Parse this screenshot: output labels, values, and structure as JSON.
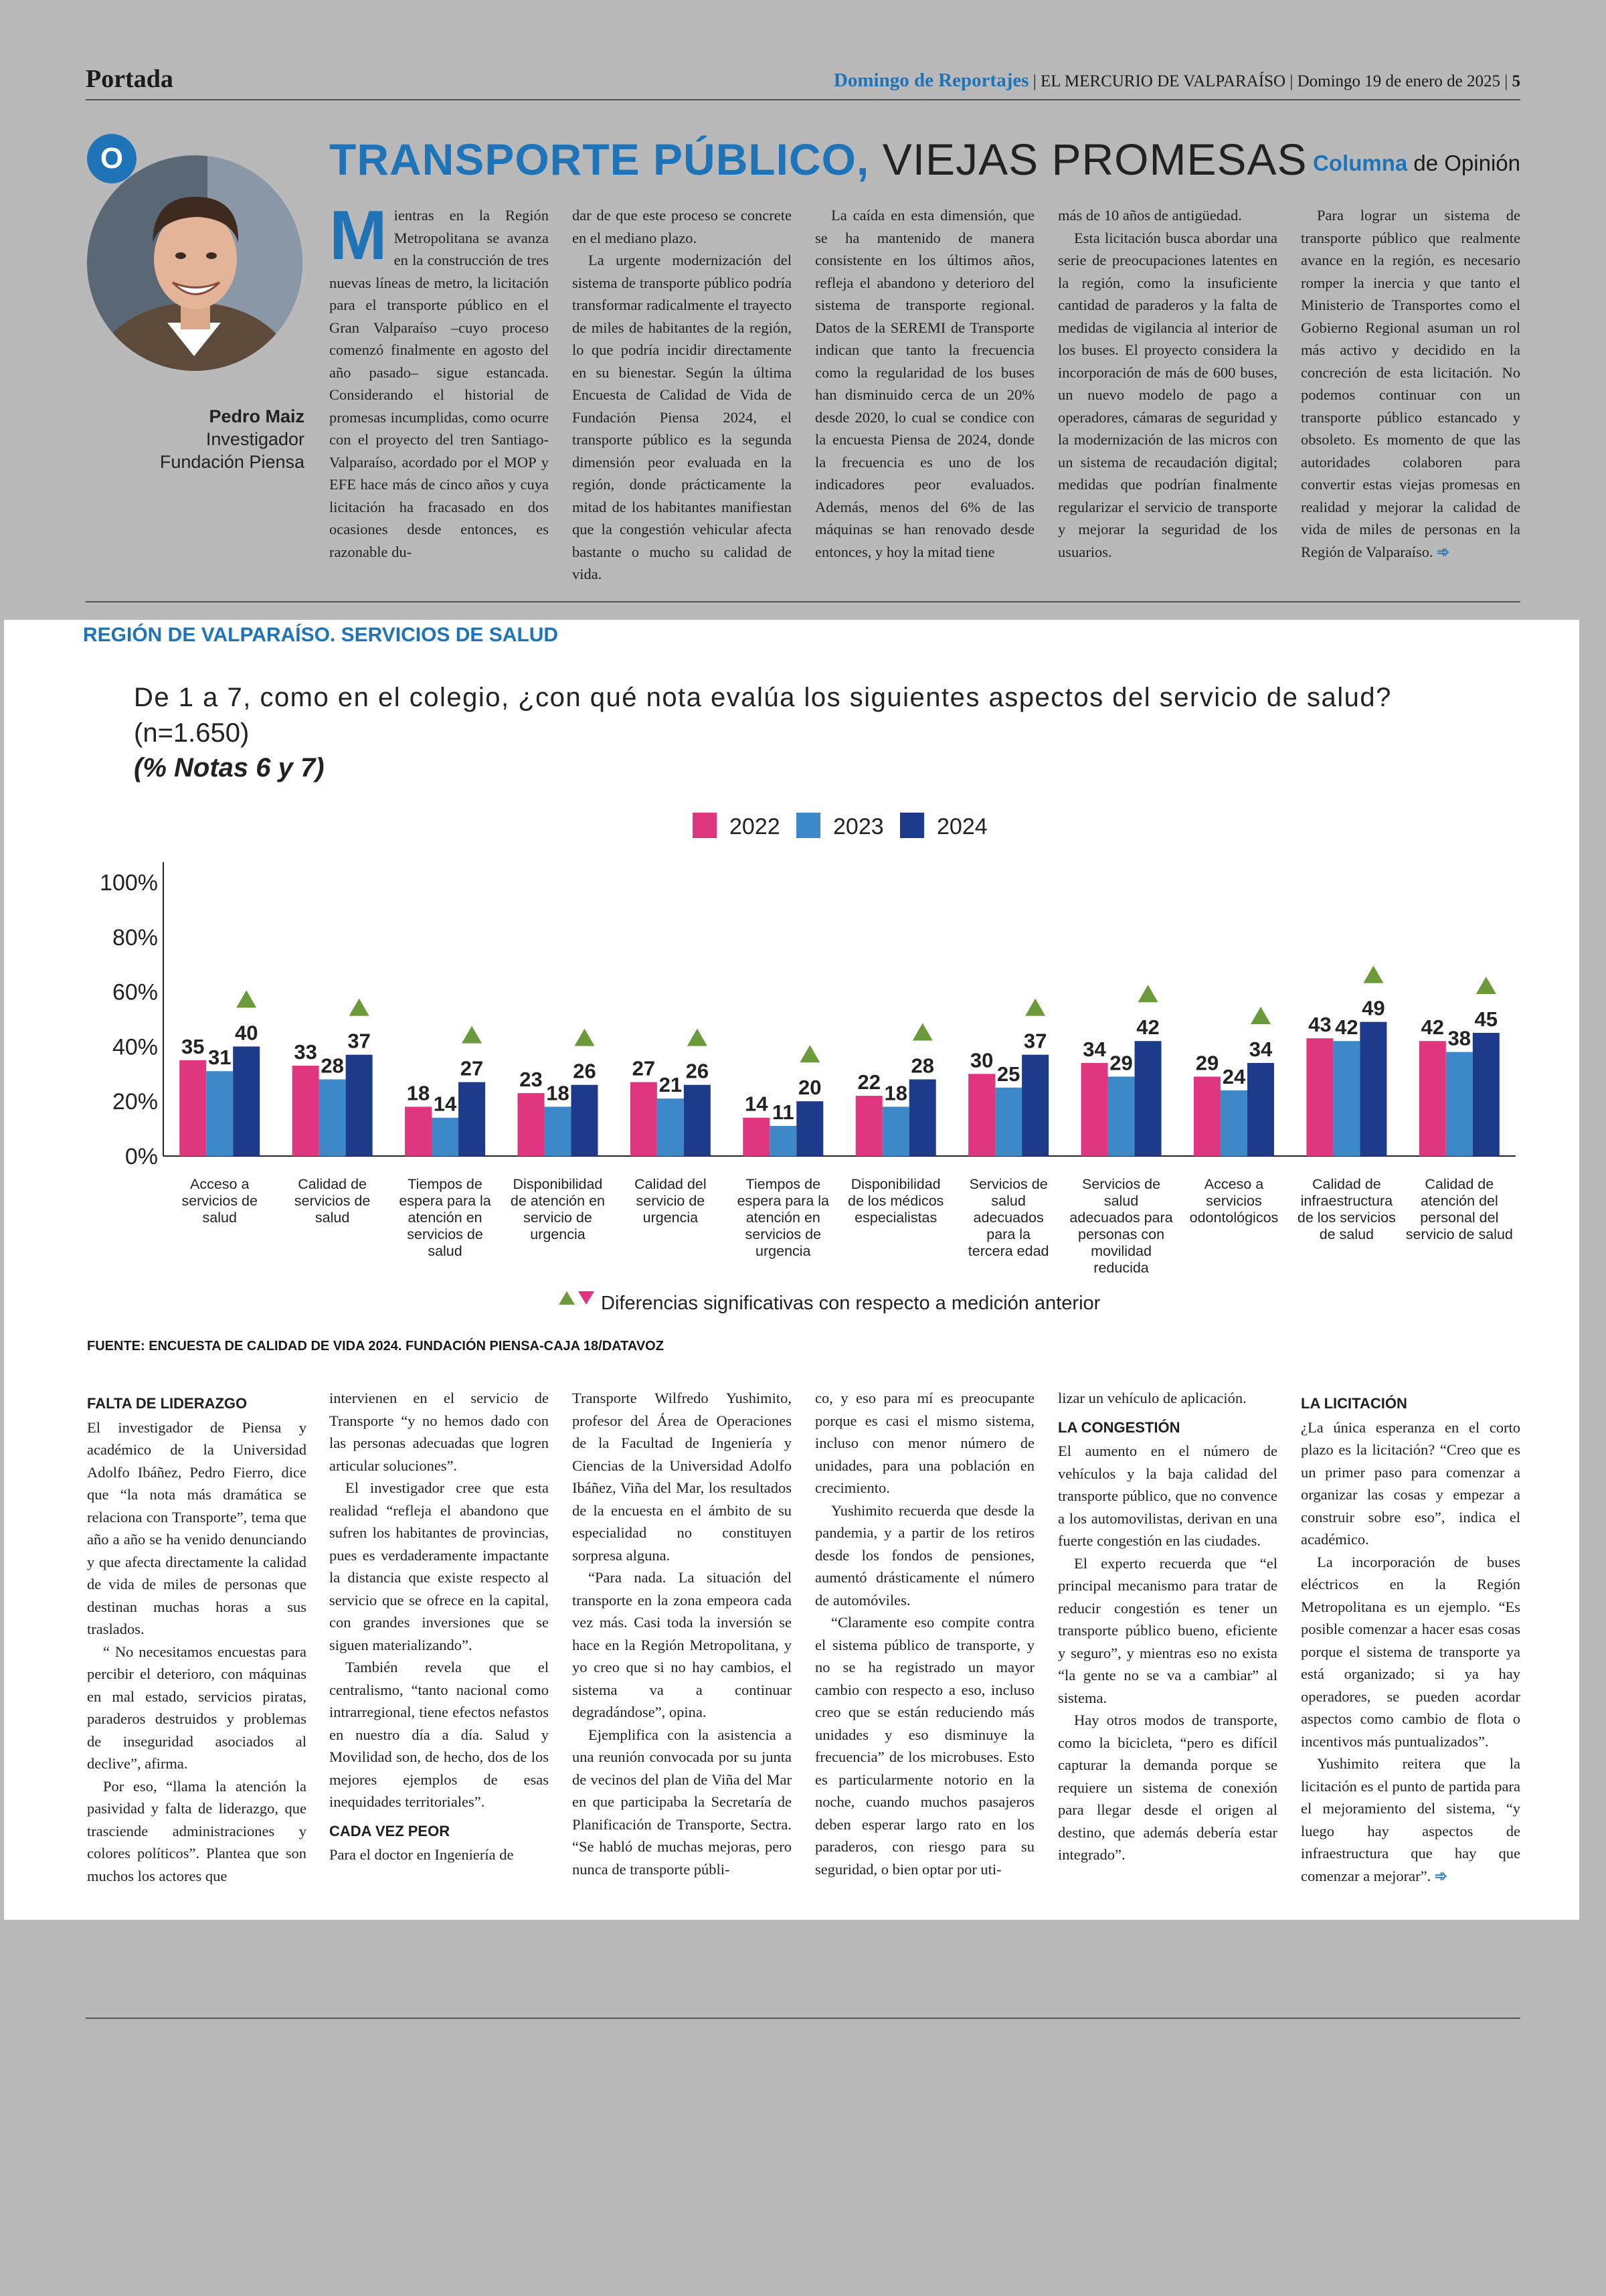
{
  "header": {
    "section": "Portada",
    "supplement": "Domingo de Reportajes",
    "paper": "| EL MERCURIO DE VALPARAÍSO |",
    "date": "Domingo 19 de enero de 2025 |",
    "page": "5"
  },
  "badge": "O",
  "headline": {
    "accent": "TRANSPORTE PÚBLICO,",
    "rest": " VIEJAS PROMESAS"
  },
  "column_label": {
    "accent": "Columna",
    "rest": " de Opinión"
  },
  "author": {
    "name": "Pedro Maiz",
    "role": "Investigador",
    "org": "Fundación Piensa"
  },
  "column": {
    "dropcap": "M",
    "c1": "ientras en la Región Metropolitana se avanza en la construcción de tres nuevas líneas de metro, la licitación para el transporte público en el Gran Valparaíso –cuyo proceso comenzó finalmente en agosto del año pasado– sigue estancada. Considerando el historial de promesas incumplidas, como ocurre con el proyecto del tren Santiago-Valparaíso, acordado por el MOP y EFE hace más de cinco años y cuya licitación ha fracasado en dos ocasiones desde entonces, es razonable du-",
    "c2a": "dar de que este proceso se concrete en el mediano plazo.",
    "c2b": "La urgente modernización del sistema de transporte público podría transformar radicalmente el trayecto de miles de habitantes de la región, lo que podría incidir directamente en su bienestar. Según la última Encuesta de Calidad de Vida de Fundación Piensa 2024, el transporte público es la segunda dimensión peor evaluada en la región, donde prácticamente la mitad de los habitantes manifiestan que la congestión vehicular afecta bastante o mucho su calidad de vida.",
    "c3": "La caída en esta dimensión, que se ha mantenido de manera consistente en los últimos años, refleja el abandono y deterioro del sistema de transporte regional. Datos de la SEREMI de Transporte indican que tanto la frecuencia como la regularidad de los buses han disminuido cerca de un 20% desde 2020, lo cual se condice con la encuesta Piensa de 2024, donde la frecuencia es uno de los indicadores peor evaluados. Además, menos del 6% de las máquinas se han renovado desde entonces, y hoy la mitad tiene",
    "c4a": "más de 10 años de antigüedad.",
    "c4b": "Esta licitación busca abordar una serie de preocupaciones latentes en la región, como la insuficiente cantidad de paraderos y la falta de medidas de vigilancia al interior de los buses. El proyecto considera la incorporación de más de 600 buses, un nuevo modelo de pago a operadores, cámaras de seguridad y la modernización de las micros con un sistema de recaudación digital; medidas que podrían finalmente regularizar el servicio de transporte y mejorar la seguridad de los usuarios.",
    "c5": "Para lograr un sistema de transporte público que realmente avance en la región, es necesario romper la inercia y que tanto el Ministerio de Transportes como el Gobierno Regional asuman un rol más activo y decidido en la concreción de esta licitación. No podemos continuar con un transporte público estancado y obsoleto. Es momento de que las autoridades colaboren para convertir estas viejas promesas en realidad y mejorar la calidad de vida de miles de personas en la Región de Valparaíso.",
    "arrow": "➾"
  },
  "section_title": "REGIÓN DE VALPARAÍSO. SERVICIOS DE SALUD",
  "chart_data": {
    "type": "bar",
    "title": "De 1 a 7, como en el colegio, ¿con qué nota evalúa los siguientes aspectos del servicio de salud?",
    "subtitle_n": "(n=1.650)",
    "subtitle": "(% Notas 6 y 7)",
    "y_ticks": [
      "100%",
      "80%",
      "60%",
      "40%",
      "20%",
      "0%"
    ],
    "ylim": [
      0,
      100
    ],
    "legend_position": "top-center",
    "categories": [
      "Acceso a servicios de salud",
      "Calidad de servicios de salud",
      "Tiempos de espera para la atención en servicios de salud",
      "Disponibilidad de atención en servicio de urgencia",
      "Calidad del servicio de urgencia",
      "Tiempos de espera para la atención en servicios de urgencia",
      "Disponibilidad de los médicos especialistas",
      "Servicios de salud adecuados para la tercera edad",
      "Servicios de salud adecuados para personas con movilidad reducida",
      "Acceso a servicios odontológicos",
      "Calidad de infraestructura de los servicios de salud",
      "Calidad de atención del personal del servicio de salud"
    ],
    "category_lines": [
      [
        "Acceso a",
        "servicios de",
        "salud"
      ],
      [
        "Calidad de",
        "servicios de",
        "salud"
      ],
      [
        "Tiempos de",
        "espera para la",
        "atención en",
        "servicios de",
        "salud"
      ],
      [
        "Disponibilidad",
        "de atención en",
        "servicio de",
        "urgencia"
      ],
      [
        "Calidad del",
        "servicio de",
        "urgencia"
      ],
      [
        "Tiempos de",
        "espera para la",
        "atención en",
        "servicios de",
        "urgencia"
      ],
      [
        "Disponibilidad",
        "de los médicos",
        "especialistas"
      ],
      [
        "Servicios de",
        "salud",
        "adecuados",
        "para la",
        "tercera edad"
      ],
      [
        "Servicios de",
        "salud",
        "adecuados para",
        "personas con",
        "movilidad",
        "reducida"
      ],
      [
        "Acceso a",
        "servicios",
        "odontológicos"
      ],
      [
        "Calidad de",
        "infraestructura",
        "de los servicios",
        "de salud"
      ],
      [
        "Calidad de",
        "atención del",
        "personal del",
        "servicio de salud"
      ]
    ],
    "series": [
      {
        "name": "2022",
        "color": "#e0357f",
        "values": [
          35,
          33,
          18,
          23,
          27,
          14,
          22,
          30,
          34,
          29,
          43,
          42
        ]
      },
      {
        "name": "2023",
        "color": "#3d88c8",
        "values": [
          31,
          28,
          14,
          18,
          21,
          11,
          18,
          25,
          29,
          24,
          42,
          38
        ]
      },
      {
        "name": "2024",
        "color": "#1e3a8a",
        "values": [
          40,
          37,
          27,
          26,
          26,
          20,
          28,
          37,
          42,
          34,
          49,
          45
        ]
      }
    ],
    "significant_up": [
      true,
      true,
      true,
      true,
      true,
      true,
      true,
      true,
      true,
      true,
      true,
      true
    ],
    "marker_color": "#6a9a3a",
    "footnote": "Diferencias significativas con respecto a medición anterior"
  },
  "source": "FUENTE: ENCUESTA DE CALIDAD DE VIDA 2024. FUNDACIÓN PIENSA-CAJA 18/DATAVOZ",
  "article": {
    "h1": "FALTA DE LIDERAZGO",
    "p1": "El investigador de Piensa y académico de la Universidad Adolfo Ibáñez, Pedro Fierro, dice que “la nota más dramática se relaciona con Transporte”, tema que año a año se ha venido denunciando y que afecta directamente la calidad de vida de miles de personas que destinan muchas horas a sus traslados.",
    "p2": "“ No necesitamos encuestas para percibir el deterioro, con máquinas en mal estado, servicios piratas, paraderos destruidos y problemas de inseguridad asociados al declive”, afirma.",
    "p3": "Por eso, “llama la atención la pasividad y falta de liderazgo, que trasciende administraciones y colores políticos”. Plantea que son muchos los actores que",
    "p4": "intervienen en el servicio de Transporte “y no hemos dado con las personas adecuadas que logren articular soluciones”.",
    "p5": "El investigador cree que esta realidad “refleja el abandono que sufren los habitantes de provincias, pues es verdaderamente impactante la distancia que existe respecto al servicio que se ofrece en la capital, con grandes inversiones que se siguen materializando”.",
    "p6": "También revela que el centralismo, “tanto nacional como intrarregional, tiene efectos nefastos en nuestro día a día. Salud y Movilidad son, de hecho, dos de los mejores ejemplos de esas inequidades territoriales”.",
    "h2": "CADA VEZ PEOR",
    "p7": "Para el doctor en Ingeniería de",
    "p8": "Transporte Wilfredo Yushimito, profesor del Área de Operaciones de la Facultad de Ingeniería y Ciencias de la Universidad Adolfo Ibáñez, Viña del Mar, los resultados de la encuesta en el ámbito de su especialidad no constituyen sorpresa alguna.",
    "p9": "“Para nada. La situación del transporte en la zona empeora cada vez más. Casi toda la inversión se hace en la Región Metropolitana, y yo creo que si no hay cambios, el sistema va a continuar degradándose”, opina.",
    "p10": "Ejemplifica con la asistencia a una reunión convocada por su junta de vecinos del plan de Viña del Mar en que participaba la Secretaría de Planificación de Transporte, Sectra. “Se habló de muchas mejoras, pero nunca de transporte públi-",
    "p11": "co, y eso para mí es preocupante porque es casi el mismo sistema, incluso con menor número de unidades, para una población en crecimiento.",
    "p12": "Yushimito recuerda que desde la pandemia, y a partir de los retiros desde los fondos de pensiones, aumentó drásticamente el número de automóviles.",
    "p13": "“Claramente eso compite contra el sistema público de transporte, y no se ha registrado un mayor cambio con respecto a eso, incluso creo que se están reduciendo más unidades y eso disminuye la frecuencia” de los microbuses. Esto es particularmente notorio en la noche, cuando muchos pasajeros deben esperar largo rato en los paraderos, con riesgo para su seguridad, o bien optar por uti-",
    "p14": "lizar un vehículo de aplicación.",
    "h3": "LA CONGESTIÓN",
    "p15": "El aumento en el número de vehículos y la baja calidad del transporte público, que no convence a los automovilistas, derivan en una fuerte congestión en las ciudades.",
    "p16": "El experto recuerda que “el principal mecanismo para tratar de reducir congestión es tener un transporte público bueno, eficiente y seguro”, y mientras eso no exista “la gente no se va a cambiar” al sistema.",
    "p17": "Hay otros modos de transporte, como la bicicleta, “pero es difícil capturar la demanda porque se requiere un sistema de conexión para llegar desde el origen al destino, que además debería estar integrado”.",
    "h4": "LA LICITACIÓN",
    "p18": "¿La única esperanza en el corto plazo es la licitación? “Creo que es un primer paso para comenzar a organizar las cosas y empezar a construir sobre eso”, indica el académico.",
    "p19": "La incorporación de buses eléctricos en la Región Metropolitana es un ejemplo. “Es posible comenzar a hacer esas cosas porque el sistema de transporte ya está organizado; si ya hay operadores, se pueden acordar aspectos como cambio de flota o incentivos más puntualizados”.",
    "p20": "Yushimito reitera que la licitación es el punto de partida para el mejoramiento del sistema, “y luego hay aspectos de infraestructura que hay que comenzar a mejorar”.",
    "arrow": "➾"
  }
}
